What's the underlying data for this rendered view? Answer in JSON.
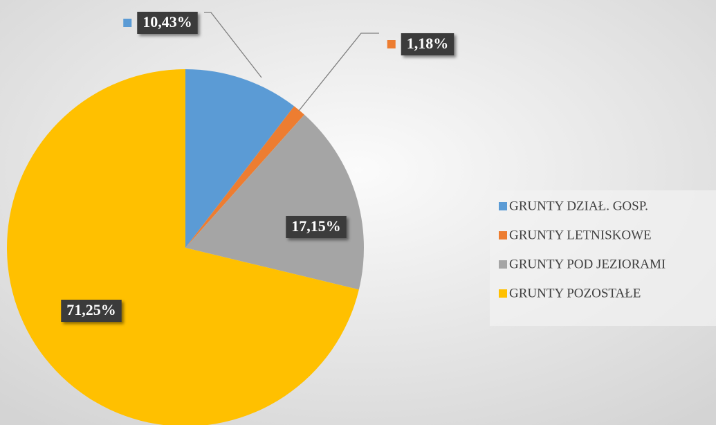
{
  "chart_data": {
    "type": "pie",
    "categories": [
      "GRUNTY DZIAŁ. GOSP.",
      "GRUNTY LETNISKOWE",
      "GRUNTY POD JEZIORAMI",
      "GRUNTY POZOSTAŁE"
    ],
    "values": [
      10.43,
      1.18,
      17.15,
      71.25
    ],
    "value_labels": [
      "10,43%",
      "1,18%",
      "17,15%",
      "71,25%"
    ],
    "colors": [
      "#5b9bd5",
      "#ed7d31",
      "#a5a5a5",
      "#ffc000"
    ],
    "legend": "right"
  }
}
